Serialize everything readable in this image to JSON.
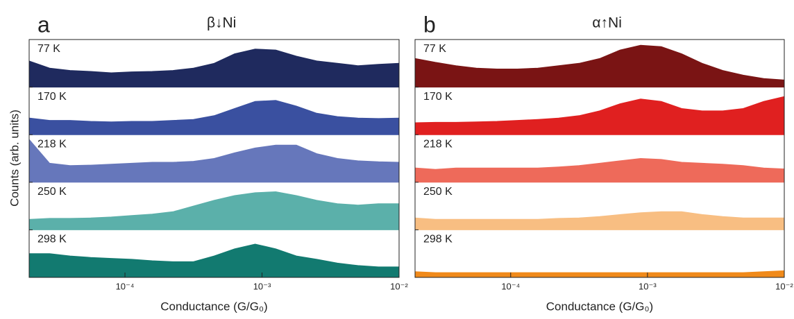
{
  "y_label": "Counts (arb. units)",
  "chart_data": [
    {
      "type": "area",
      "panel": "a",
      "title": "β↓Ni",
      "x_label": "Conductance (G/G₀)",
      "log_x": true,
      "x": [
        2e-05,
        2.82e-05,
        3.98e-05,
        5.62e-05,
        7.94e-05,
        0.000112,
        0.000158,
        0.000224,
        0.000316,
        0.000447,
        0.000631,
        0.000891,
        0.00126,
        0.00178,
        0.00251,
        0.00355,
        0.00501,
        0.00708,
        0.01
      ],
      "xlim": [
        2e-05,
        0.01
      ],
      "xticks": [
        {
          "value": 0.0001,
          "label": "10⁻⁴"
        },
        {
          "value": 0.001,
          "label": "10⁻³"
        },
        {
          "value": 0.01,
          "label": "10⁻²"
        }
      ],
      "ylim": [
        0,
        1
      ],
      "series": [
        {
          "name": "77 K",
          "color": "#1f2a5e",
          "values": [
            0.55,
            0.4,
            0.35,
            0.33,
            0.3,
            0.32,
            0.33,
            0.35,
            0.4,
            0.5,
            0.7,
            0.8,
            0.78,
            0.65,
            0.55,
            0.5,
            0.45,
            0.48,
            0.5
          ]
        },
        {
          "name": "170 K",
          "color": "#3a50a0",
          "values": [
            0.35,
            0.3,
            0.3,
            0.28,
            0.27,
            0.28,
            0.28,
            0.3,
            0.32,
            0.4,
            0.55,
            0.7,
            0.72,
            0.6,
            0.45,
            0.38,
            0.35,
            0.34,
            0.35
          ]
        },
        {
          "name": "218 K",
          "color": "#6677bb",
          "values": [
            0.9,
            0.4,
            0.35,
            0.36,
            0.38,
            0.4,
            0.42,
            0.42,
            0.44,
            0.5,
            0.62,
            0.72,
            0.78,
            0.78,
            0.6,
            0.5,
            0.45,
            0.43,
            0.42
          ]
        },
        {
          "name": "250 K",
          "color": "#5bb0aa",
          "values": [
            0.22,
            0.24,
            0.24,
            0.25,
            0.27,
            0.3,
            0.33,
            0.38,
            0.5,
            0.62,
            0.72,
            0.78,
            0.8,
            0.72,
            0.62,
            0.55,
            0.52,
            0.55,
            0.55
          ]
        },
        {
          "name": "298 K",
          "color": "#127a70",
          "values": [
            0.5,
            0.5,
            0.45,
            0.42,
            0.4,
            0.38,
            0.35,
            0.33,
            0.33,
            0.45,
            0.6,
            0.7,
            0.6,
            0.45,
            0.38,
            0.3,
            0.25,
            0.22,
            0.22
          ]
        }
      ]
    },
    {
      "type": "area",
      "panel": "b",
      "title": "α↑Ni",
      "x_label": "Conductance (G/G₀)",
      "log_x": true,
      "x": [
        2e-05,
        2.82e-05,
        3.98e-05,
        5.62e-05,
        7.94e-05,
        0.000112,
        0.000158,
        0.000224,
        0.000316,
        0.000447,
        0.000631,
        0.000891,
        0.00126,
        0.00178,
        0.00251,
        0.00355,
        0.00501,
        0.00708,
        0.01
      ],
      "xlim": [
        2e-05,
        0.01
      ],
      "xticks": [
        {
          "value": 0.0001,
          "label": "10⁻⁴"
        },
        {
          "value": 0.001,
          "label": "10⁻³"
        },
        {
          "value": 0.01,
          "label": "10⁻²"
        }
      ],
      "ylim": [
        0,
        1
      ],
      "series": [
        {
          "name": "77 K",
          "color": "#7a1414",
          "values": [
            0.6,
            0.52,
            0.45,
            0.4,
            0.38,
            0.38,
            0.4,
            0.45,
            0.5,
            0.6,
            0.78,
            0.88,
            0.85,
            0.7,
            0.5,
            0.35,
            0.25,
            0.18,
            0.15
          ]
        },
        {
          "name": "170 K",
          "color": "#e02020",
          "values": [
            0.25,
            0.26,
            0.26,
            0.27,
            0.28,
            0.3,
            0.32,
            0.35,
            0.4,
            0.5,
            0.65,
            0.75,
            0.7,
            0.55,
            0.5,
            0.5,
            0.55,
            0.7,
            0.8
          ]
        },
        {
          "name": "218 K",
          "color": "#ee6a5a",
          "values": [
            0.3,
            0.27,
            0.3,
            0.3,
            0.3,
            0.3,
            0.3,
            0.32,
            0.35,
            0.4,
            0.45,
            0.5,
            0.48,
            0.42,
            0.4,
            0.38,
            0.35,
            0.3,
            0.28
          ]
        },
        {
          "name": "250 K",
          "color": "#f8be82",
          "values": [
            0.25,
            0.22,
            0.22,
            0.22,
            0.22,
            0.22,
            0.22,
            0.24,
            0.25,
            0.28,
            0.32,
            0.36,
            0.38,
            0.38,
            0.32,
            0.28,
            0.25,
            0.25,
            0.25
          ]
        },
        {
          "name": "298 K",
          "color": "#f08a1a",
          "values": [
            0.12,
            0.1,
            0.1,
            0.1,
            0.1,
            0.1,
            0.1,
            0.1,
            0.1,
            0.1,
            0.1,
            0.1,
            0.1,
            0.1,
            0.1,
            0.1,
            0.1,
            0.12,
            0.14
          ]
        }
      ]
    }
  ]
}
